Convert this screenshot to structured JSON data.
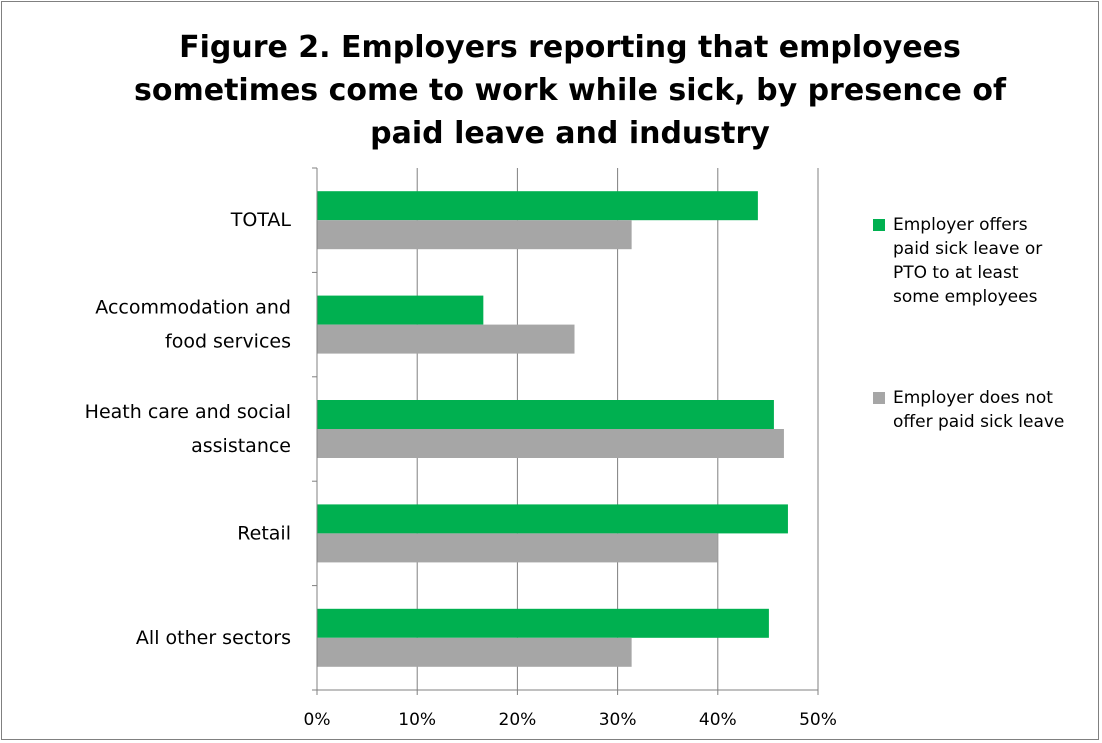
{
  "title_lines": [
    "Figure 2.  Employers reporting that employees",
    "sometimes come to work while sick, by presence of",
    "paid leave and industry"
  ],
  "colors": {
    "offers": "#00b050",
    "does_not_offer": "#a6a6a6",
    "grid": "#808080"
  },
  "chart_data": {
    "type": "bar",
    "orientation": "horizontal",
    "title": "Figure 2.  Employers reporting that employees sometimes come to work while sick, by presence of paid leave and industry",
    "categories": [
      [
        "TOTAL"
      ],
      [
        "Accommodation and",
        "food services"
      ],
      [
        "Heath care and social",
        "assistance"
      ],
      [
        "Retail"
      ],
      [
        "All other sectors"
      ]
    ],
    "series": [
      {
        "name": "Employer offers paid sick leave or PTO to at least some employees",
        "legend_lines": [
          "Employer offers",
          "paid sick leave or",
          "PTO to at least",
          "some employees"
        ],
        "color": "#00b050",
        "values": [
          44,
          16.6,
          45.6,
          47,
          45.1
        ]
      },
      {
        "name": "Employer does not offer paid sick leave",
        "legend_lines": [
          "Employer does not",
          "offer paid sick leave"
        ],
        "color": "#a6a6a6",
        "values": [
          31.4,
          25.7,
          46.6,
          40,
          31.4
        ]
      }
    ],
    "xlim": [
      0,
      50
    ],
    "ticks": [
      "0%",
      "10%",
      "20%",
      "30%",
      "40%",
      "50%"
    ],
    "tick_values": [
      0,
      10,
      20,
      30,
      40,
      50
    ],
    "grid": true,
    "legend_position": "right"
  }
}
